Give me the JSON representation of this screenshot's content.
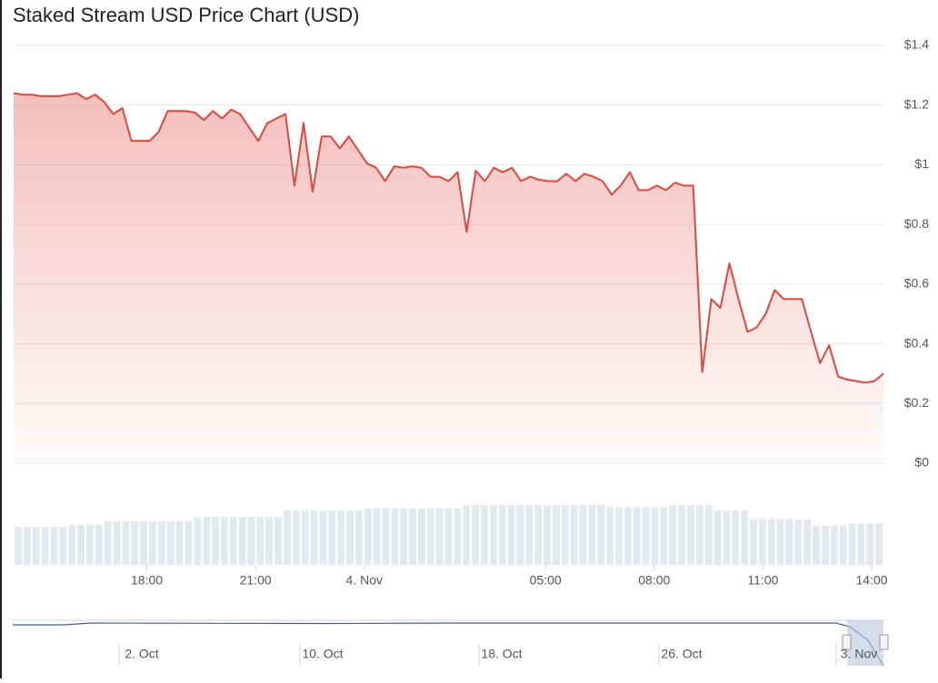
{
  "chart_data": {
    "type": "area",
    "title": "Staked Stream USD Price Chart (USD)",
    "color": "#e0473c",
    "volume_color": "#e3e8ef",
    "values": [
      1.24,
      1.235,
      1.235,
      1.23,
      1.23,
      1.23,
      1.235,
      1.24,
      1.22,
      1.235,
      1.21,
      1.17,
      1.19,
      1.08,
      1.08,
      1.08,
      1.11,
      1.18,
      1.18,
      1.18,
      1.175,
      1.15,
      1.18,
      1.155,
      1.185,
      1.17,
      1.125,
      1.08,
      1.14,
      1.155,
      1.17,
      0.93,
      1.14,
      0.91,
      1.095,
      1.095,
      1.055,
      1.095,
      1.05,
      1.005,
      0.99,
      0.945,
      0.995,
      0.99,
      0.995,
      0.99,
      0.96,
      0.96,
      0.945,
      0.975,
      0.775,
      0.98,
      0.945,
      0.99,
      0.975,
      0.99,
      0.945,
      0.96,
      0.95,
      0.945,
      0.945,
      0.97,
      0.945,
      0.97,
      0.96,
      0.945,
      0.9,
      0.93,
      0.975,
      0.915,
      0.915,
      0.93,
      0.915,
      0.94,
      0.93,
      0.93,
      0.305,
      0.55,
      0.52,
      0.67,
      0.55,
      0.44,
      0.455,
      0.5,
      0.58,
      0.55,
      0.55,
      0.55,
      0.44,
      0.335,
      0.395,
      0.29,
      0.28,
      0.275,
      0.27,
      0.275,
      0.3
    ],
    "volume": [
      35,
      35,
      35,
      35,
      35,
      35,
      37,
      37,
      37,
      37,
      40,
      40,
      40,
      40,
      40,
      40,
      40,
      40,
      40,
      40,
      44,
      44,
      44,
      44,
      44,
      44,
      44,
      44,
      44,
      44,
      50,
      50,
      50,
      50,
      50,
      50,
      50,
      50,
      50,
      52,
      52,
      52,
      52,
      52,
      52,
      52,
      52,
      52,
      52,
      52,
      55,
      55,
      55,
      55,
      55,
      55,
      55,
      55,
      55,
      55,
      55,
      55,
      55,
      55,
      55,
      55,
      53,
      53,
      53,
      53,
      53,
      53,
      53,
      55,
      55,
      55,
      55,
      55,
      50,
      50,
      50,
      50,
      42,
      42,
      42,
      42,
      42,
      42,
      42,
      36,
      36,
      36,
      36,
      38,
      38,
      38,
      38
    ],
    "xlim": [
      0,
      96
    ],
    "xticks": [
      {
        "value": 14.7,
        "label": "18:00"
      },
      {
        "value": 26.7,
        "label": "21:00"
      },
      {
        "value": 38.7,
        "label": "4. Nov"
      },
      {
        "value": 58.7,
        "label": "05:00"
      },
      {
        "value": 70.7,
        "label": "08:00"
      },
      {
        "value": 82.7,
        "label": "11:00"
      },
      {
        "value": 94.7,
        "label": "14:00"
      }
    ],
    "ylim": [
      0,
      1.4
    ],
    "yticks": [
      {
        "value": 0,
        "label": "$0"
      },
      {
        "value": 0.2,
        "label": "$0.2"
      },
      {
        "value": 0.4,
        "label": "$0.4"
      },
      {
        "value": 0.6,
        "label": "$0.6"
      },
      {
        "value": 0.8,
        "label": "$0.8"
      },
      {
        "value": 1,
        "label": "$1"
      },
      {
        "value": 1.2,
        "label": "$1.2"
      },
      {
        "value": 1.4,
        "label": "$1.4"
      }
    ],
    "grid": true,
    "navigator_labels": [
      "2. Oct",
      "10. Oct",
      "18. Oct",
      "26. Oct",
      "3. Nov"
    ]
  }
}
